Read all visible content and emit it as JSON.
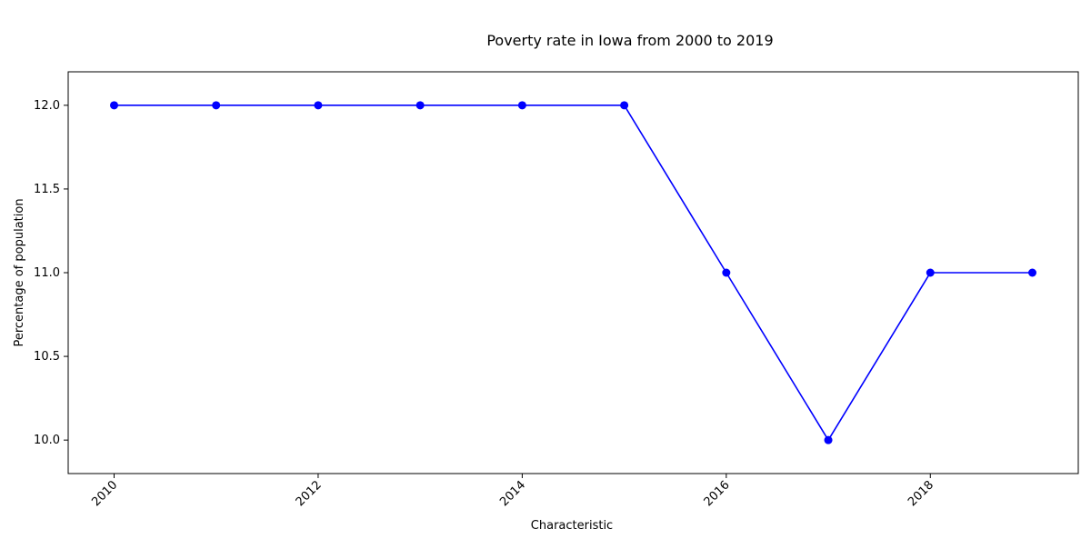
{
  "chart_data": {
    "type": "line",
    "title": "Poverty rate in Iowa from 2000 to 2019",
    "xlabel": "Characteristic",
    "ylabel": "Percentage of population",
    "x": [
      2010,
      2011,
      2012,
      2013,
      2014,
      2015,
      2016,
      2017,
      2018,
      2019
    ],
    "series": [
      {
        "values": [
          12,
          12,
          12,
          12,
          12,
          12,
          11,
          10,
          11,
          11
        ],
        "color": "#0000ff",
        "marker": "circle"
      }
    ],
    "xlim": [
      2009.55,
      2019.45
    ],
    "ylim": [
      9.8,
      12.2
    ],
    "xticks": [
      2010,
      2012,
      2014,
      2016,
      2018
    ],
    "xtick_labels": [
      "2010",
      "2012",
      "2014",
      "2016",
      "2018"
    ],
    "yticks": [
      10.0,
      10.5,
      11.0,
      11.5,
      12.0
    ],
    "ytick_labels": [
      "10.0",
      "10.5",
      "11.0",
      "11.5",
      "12.0"
    ],
    "grid": false,
    "legend": false
  }
}
